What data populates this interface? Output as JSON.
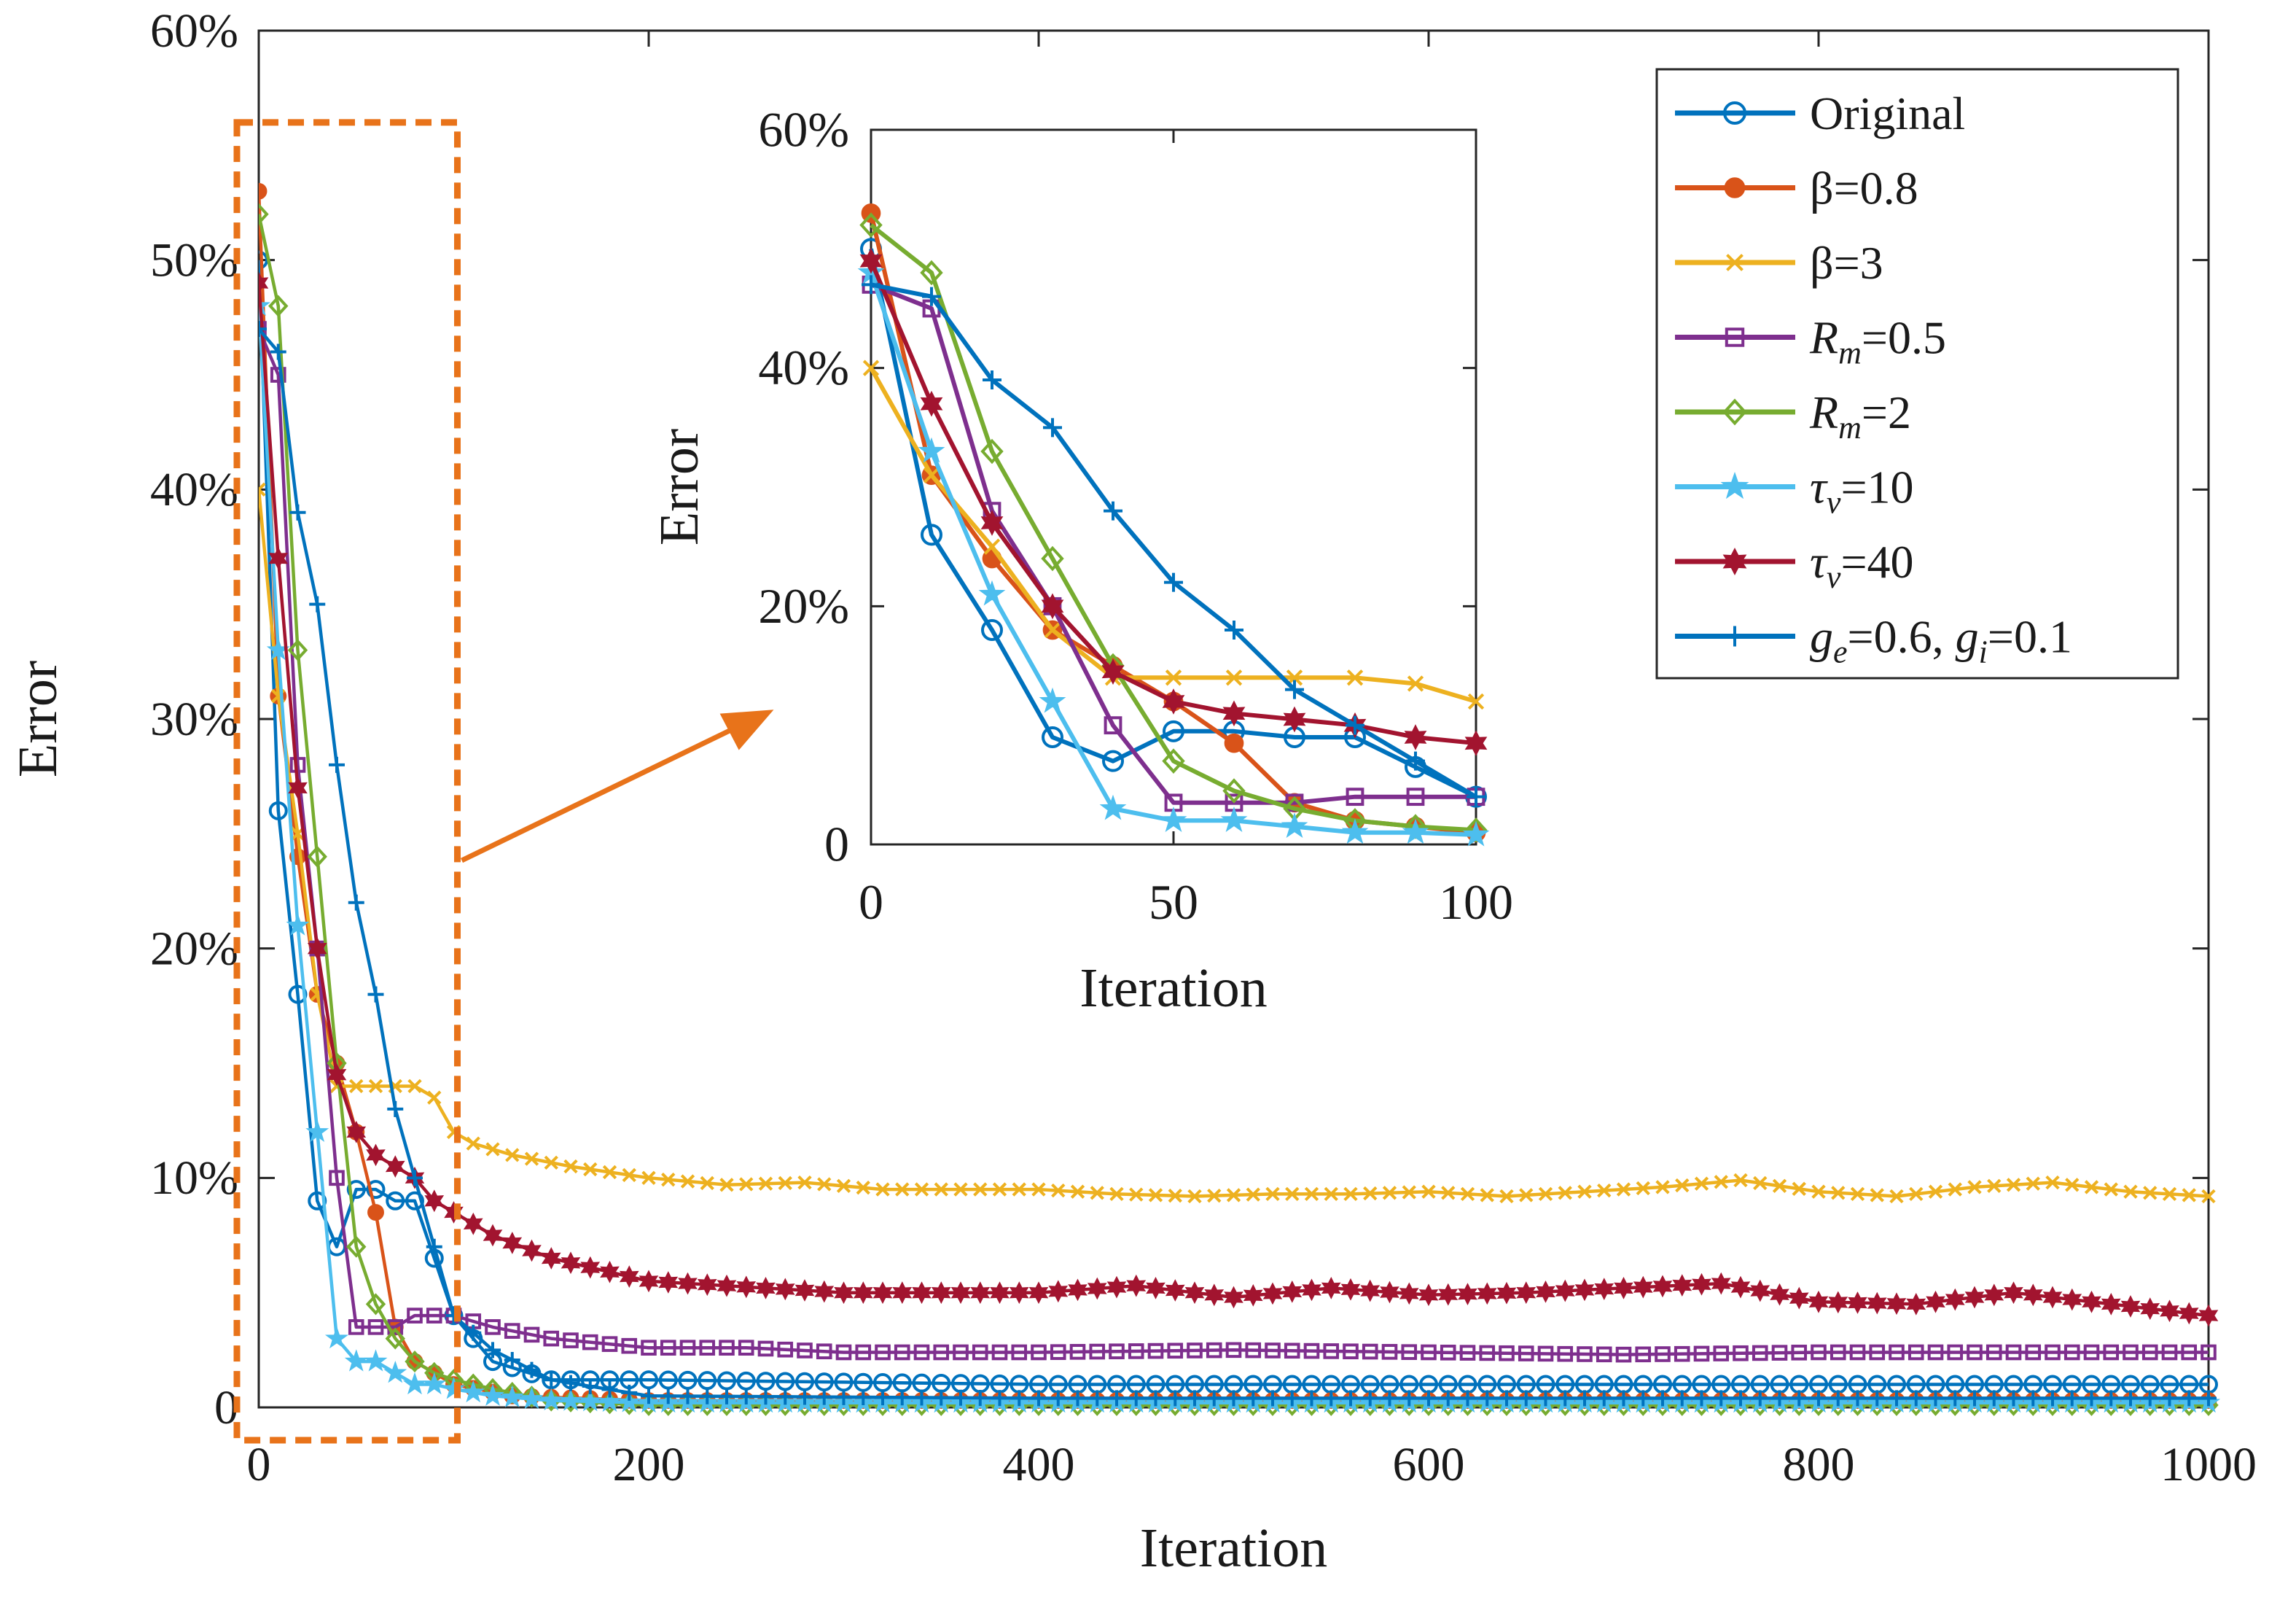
{
  "chart_data": [
    {
      "id": "main",
      "type": "line",
      "xlabel": "Iteration",
      "ylabel": "Error",
      "xlim": [
        0,
        1000
      ],
      "ylim": [
        0,
        60
      ],
      "xticks": [
        0,
        200,
        400,
        600,
        800,
        1000
      ],
      "yticks": [
        0,
        10,
        20,
        30,
        40,
        50,
        60
      ],
      "xtick_labels": [
        "0",
        "200",
        "400",
        "600",
        "800",
        "1000"
      ],
      "ytick_labels": [
        "0",
        "10%",
        "20%",
        "30%",
        "40%",
        "50%",
        "60%"
      ],
      "legend_position": "top-right",
      "zoom_region": {
        "x": [
          0,
          100
        ],
        "y": [
          0,
          56
        ]
      },
      "series": [
        {
          "key": "original",
          "name": "Original",
          "color": "#0072BD",
          "marker": "circle",
          "x": [
            0,
            10,
            20,
            30,
            40,
            50,
            60,
            70,
            80,
            90,
            100,
            120,
            150,
            200,
            300,
            400,
            500,
            600,
            700,
            800,
            900,
            1000
          ],
          "y": [
            50,
            26,
            18,
            9,
            7,
            9.5,
            9.5,
            9,
            9,
            6.5,
            4,
            2,
            1.2,
            1.2,
            1.1,
            1,
            1,
            1,
            1,
            1,
            1,
            1
          ]
        },
        {
          "key": "beta08",
          "name": "β=0.8",
          "color": "#D95319",
          "marker": "dot",
          "x": [
            0,
            10,
            20,
            30,
            40,
            50,
            60,
            70,
            80,
            90,
            100,
            130,
            200,
            400,
            600,
            800,
            1000
          ],
          "y": [
            53,
            31,
            24,
            18,
            15,
            12,
            8.5,
            3.5,
            2,
            1.5,
            1,
            0.5,
            0.3,
            0.3,
            0.3,
            0.3,
            0.3
          ]
        },
        {
          "key": "beta3",
          "name": "β=3",
          "color": "#EDB120",
          "marker": "x",
          "x": [
            0,
            10,
            20,
            30,
            40,
            50,
            60,
            70,
            80,
            90,
            100,
            110,
            130,
            160,
            200,
            240,
            280,
            320,
            360,
            400,
            440,
            480,
            520,
            560,
            600,
            640,
            680,
            720,
            760,
            800,
            840,
            880,
            920,
            960,
            1000
          ],
          "y": [
            40,
            31,
            25,
            18,
            14,
            14,
            14,
            14,
            14,
            13.5,
            12,
            11.5,
            11,
            10.5,
            10,
            9.7,
            9.8,
            9.5,
            9.5,
            9.5,
            9.3,
            9.2,
            9.3,
            9.3,
            9.4,
            9.2,
            9.4,
            9.6,
            9.9,
            9.4,
            9.2,
            9.6,
            9.8,
            9.4,
            9.2
          ]
        },
        {
          "key": "rm05",
          "name": "Rm=0.5",
          "color": "#7E2F8E",
          "marker": "square",
          "x": [
            0,
            10,
            20,
            30,
            40,
            50,
            60,
            70,
            80,
            90,
            100,
            120,
            150,
            200,
            250,
            300,
            400,
            500,
            600,
            700,
            800,
            900,
            1000
          ],
          "y": [
            47,
            45,
            28,
            20,
            10,
            3.5,
            3.5,
            3.5,
            4,
            4,
            4,
            3.5,
            3,
            2.6,
            2.6,
            2.4,
            2.4,
            2.5,
            2.4,
            2.3,
            2.4,
            2.4,
            2.4
          ]
        },
        {
          "key": "rm2",
          "name": "Rm=2",
          "color": "#77AC30",
          "marker": "diamond",
          "x": [
            0,
            10,
            20,
            30,
            40,
            50,
            60,
            70,
            80,
            90,
            100,
            120,
            150,
            200,
            400,
            600,
            800,
            1000
          ],
          "y": [
            52,
            48,
            33,
            24,
            15,
            7,
            4.5,
            3,
            2,
            1.5,
            1.2,
            0.8,
            0.3,
            0.1,
            0.1,
            0.1,
            0.1,
            0.1
          ]
        },
        {
          "key": "tau10",
          "name": "τv=10",
          "color": "#4DBEEE",
          "marker": "star",
          "x": [
            0,
            10,
            20,
            30,
            40,
            50,
            60,
            70,
            80,
            90,
            100,
            120,
            150,
            200,
            400,
            600,
            800,
            1000
          ],
          "y": [
            48,
            33,
            21,
            12,
            3,
            2,
            2,
            1.5,
            1,
            1,
            0.8,
            0.5,
            0.3,
            0.2,
            0.2,
            0.2,
            0.2,
            0.2
          ]
        },
        {
          "key": "tau40",
          "name": "τv=40",
          "color": "#A2142F",
          "marker": "hexagram",
          "x": [
            0,
            10,
            20,
            30,
            40,
            50,
            60,
            70,
            80,
            90,
            100,
            120,
            150,
            200,
            300,
            400,
            450,
            500,
            550,
            600,
            650,
            700,
            750,
            800,
            850,
            900,
            950,
            1000
          ],
          "y": [
            49,
            37,
            27,
            20,
            14.5,
            12,
            11,
            10.5,
            10,
            9,
            8.5,
            7.5,
            6.5,
            5.5,
            5,
            5,
            5.3,
            4.8,
            5.2,
            4.9,
            5,
            5.2,
            5.4,
            4.6,
            4.5,
            5,
            4.5,
            4
          ]
        },
        {
          "key": "ge06",
          "name": "ge=0.6, gi=0.1",
          "color": "#0072BD",
          "marker": "plus",
          "x": [
            0,
            10,
            20,
            30,
            40,
            50,
            60,
            70,
            80,
            90,
            100,
            120,
            150,
            200,
            400,
            600,
            800,
            1000
          ],
          "y": [
            47,
            46,
            39,
            35,
            28,
            22,
            18,
            13,
            10,
            7,
            4,
            2.5,
            1.2,
            0.5,
            0.4,
            0.4,
            0.4,
            0.4
          ]
        }
      ]
    },
    {
      "id": "inset",
      "type": "line",
      "xlabel": "Iteration",
      "ylabel": "Error",
      "xlim": [
        0,
        100
      ],
      "ylim": [
        0,
        60
      ],
      "xticks": [
        0,
        50,
        100
      ],
      "yticks": [
        0,
        20,
        40,
        60
      ],
      "xtick_labels": [
        "0",
        "50",
        "100"
      ],
      "ytick_labels": [
        "0",
        "20%",
        "40%",
        "60%"
      ],
      "series_ref": "main"
    }
  ],
  "legend": {
    "items": [
      {
        "key": "original",
        "base": "Original",
        "sub": "",
        "rest": ""
      },
      {
        "key": "beta08",
        "base": "β",
        "sub": "",
        "rest": "=0.8"
      },
      {
        "key": "beta3",
        "base": "β",
        "sub": "",
        "rest": "=3"
      },
      {
        "key": "rm05",
        "base": "R",
        "sub": "m",
        "rest": "=0.5"
      },
      {
        "key": "rm2",
        "base": "R",
        "sub": "m",
        "rest": "=2"
      },
      {
        "key": "tau10",
        "base": "τ",
        "sub": "v",
        "rest": "=10"
      },
      {
        "key": "tau40",
        "base": "τ",
        "sub": "v",
        "rest": "=40"
      },
      {
        "key": "ge06",
        "base": "g",
        "sub": "e",
        "rest": "=0.6, ",
        "base2": "g",
        "sub2": "i",
        "rest2": "=0.1"
      }
    ]
  },
  "colors": {
    "axis": "#262626",
    "zoom_box": "#E8731A",
    "arrow": "#E8731A"
  }
}
